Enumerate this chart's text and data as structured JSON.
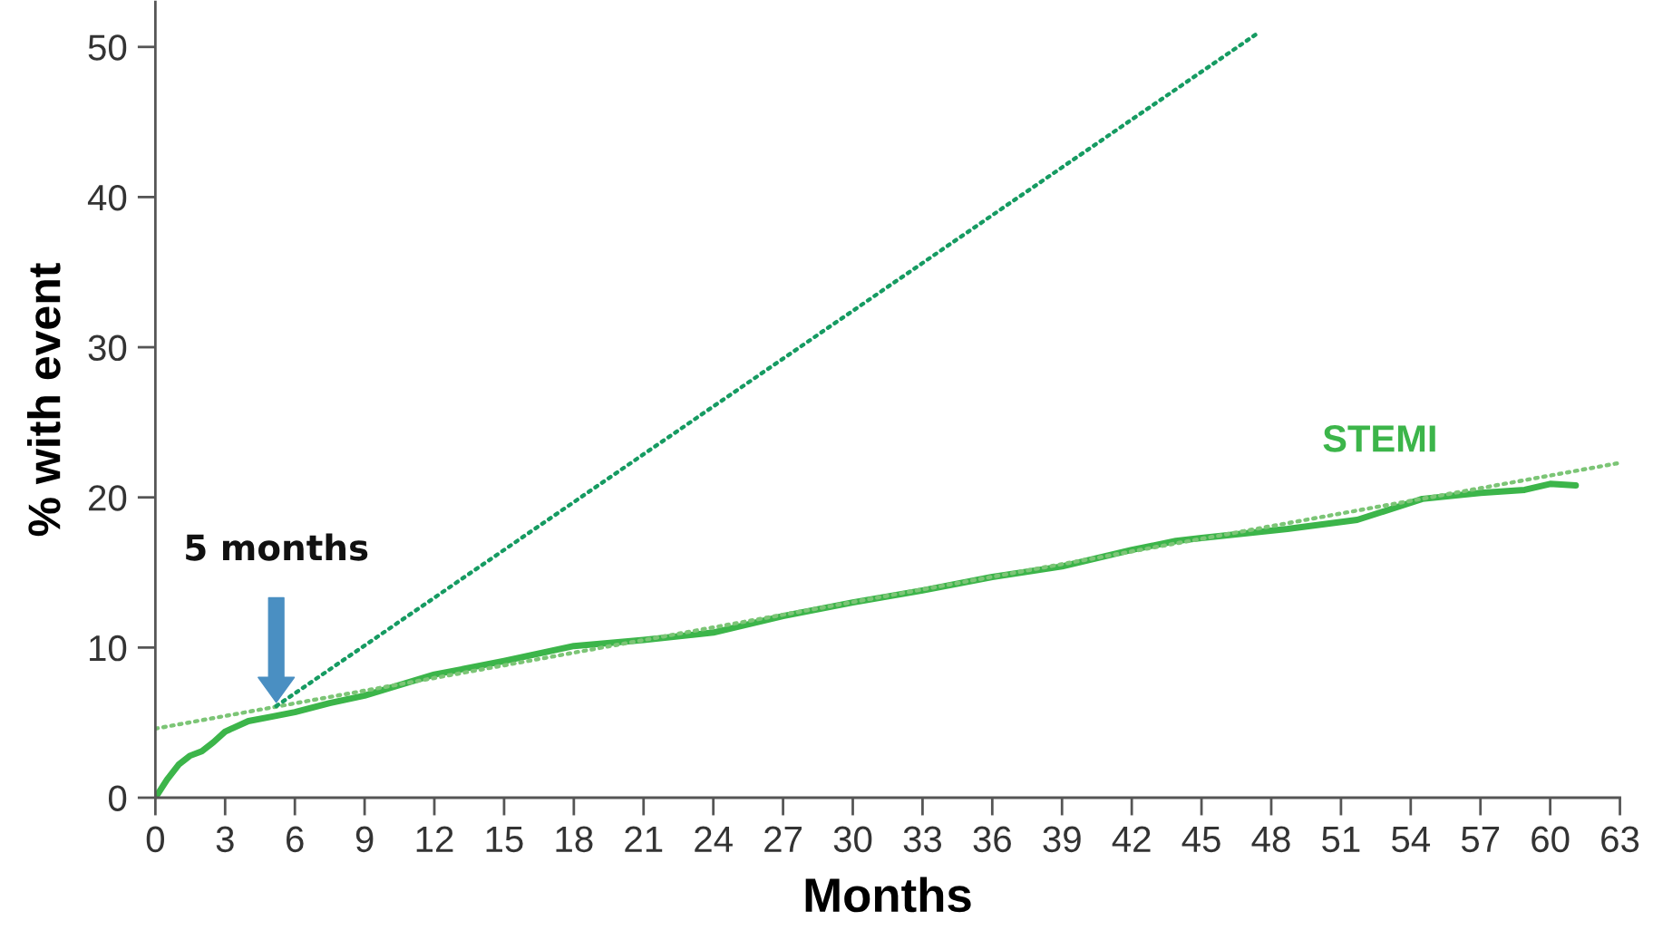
{
  "chart_data": {
    "type": "line",
    "xlabel": "Months",
    "ylabel": "% with event",
    "xlim": [
      0,
      63
    ],
    "xticks": [
      0,
      3,
      6,
      9,
      12,
      15,
      18,
      21,
      24,
      27,
      30,
      33,
      36,
      39,
      42,
      45,
      48,
      51,
      54,
      57,
      60,
      63
    ],
    "ylim": [
      0,
      53
    ],
    "yticks": [
      0,
      10,
      20,
      30,
      40,
      50
    ],
    "annotations": [
      "5 months"
    ],
    "series": [
      {
        "name": "STEMI",
        "color": "#3cb54a",
        "line_style": "solid",
        "x": [
          0,
          0.5,
          1,
          1.5,
          2,
          2.5,
          3,
          4,
          5,
          6,
          7.5,
          9,
          12,
          15,
          18,
          21,
          24,
          27,
          30,
          33,
          36,
          39,
          42,
          43.9,
          45,
          48.7,
          51.7,
          54.5,
          57,
          58.9,
          60,
          61.1
        ],
        "values": [
          0,
          1.2,
          2.2,
          2.8,
          3.1,
          3.7,
          4.4,
          5.1,
          5.4,
          5.7,
          6.3,
          6.8,
          8.2,
          9.1,
          10.1,
          10.5,
          11.0,
          12.1,
          13.0,
          13.8,
          14.7,
          15.4,
          16.5,
          17.1,
          17.3,
          17.9,
          18.5,
          19.9,
          20.3,
          20.5,
          20.9,
          20.8
        ]
      },
      {
        "color": "#7cc576",
        "line_style": "dotted",
        "x": [
          0,
          63
        ],
        "values": [
          4.6,
          22.3
        ]
      },
      {
        "color": "#169b62",
        "line_style": "dotted",
        "x": [
          5.2,
          47.5
        ],
        "values": [
          6.1,
          51.0
        ]
      }
    ]
  }
}
